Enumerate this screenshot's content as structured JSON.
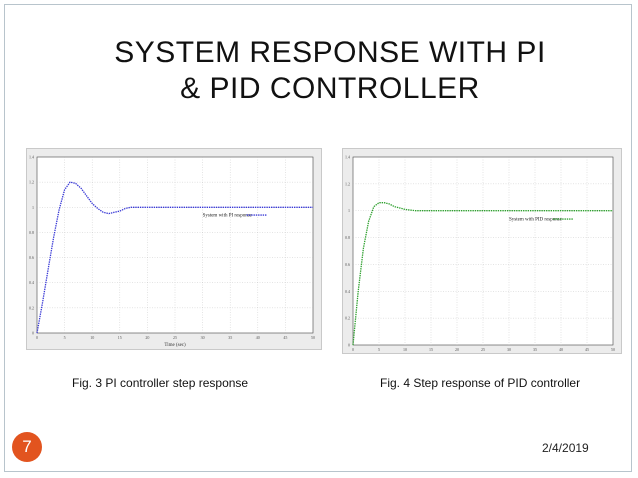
{
  "slide": {
    "title_line1": "SYSTEM RESPONSE WITH PI",
    "title_line2": "& PID CONTROLLER",
    "slide_number": "7",
    "date": "2/4/2019",
    "accent_color": "#e2541f"
  },
  "chart_data": [
    {
      "type": "line",
      "caption": "Fig. 3 PI controller step response",
      "xlabel": "Time (sec)",
      "ylabel": "Amplitude",
      "xlim": [
        0,
        50
      ],
      "ylim": [
        0,
        1.4
      ],
      "xticks": [
        "0",
        "5",
        "10",
        "15",
        "20",
        "25",
        "30",
        "35",
        "40",
        "45",
        "50"
      ],
      "yticks": [
        "0",
        "0.2",
        "0.4",
        "0.6",
        "0.8",
        "1",
        "1.2",
        "1.4"
      ],
      "grid": true,
      "legend_position": "right",
      "series": [
        {
          "name": "System with PI response",
          "color": "#3a3ad6",
          "x": [
            0,
            1,
            2,
            3,
            4,
            5,
            6,
            7,
            8,
            9,
            10,
            11,
            12,
            13,
            14,
            15,
            16,
            17,
            18,
            19,
            20,
            22,
            24,
            26,
            28,
            30,
            35,
            40,
            45,
            50
          ],
          "y": [
            0,
            0.24,
            0.5,
            0.76,
            0.98,
            1.14,
            1.2,
            1.19,
            1.15,
            1.09,
            1.03,
            0.99,
            0.96,
            0.95,
            0.96,
            0.97,
            0.99,
            1.0,
            1.0,
            1.0,
            1.0,
            1.0,
            1.0,
            1.0,
            1.0,
            1.0,
            1.0,
            1.0,
            1.0,
            1.0
          ]
        }
      ]
    },
    {
      "type": "line",
      "caption": "Fig. 4 Step response of PID controller",
      "xlabel": "Time (sec)",
      "ylabel": "Amplitude",
      "xlim": [
        0,
        50
      ],
      "ylim": [
        0,
        1.4
      ],
      "xticks": [
        "0",
        "5",
        "10",
        "15",
        "20",
        "25",
        "30",
        "35",
        "40",
        "45",
        "50"
      ],
      "yticks": [
        "0",
        "0.2",
        "0.4",
        "0.6",
        "0.8",
        "1",
        "1.2",
        "1.4"
      ],
      "grid": true,
      "legend_position": "right",
      "series": [
        {
          "name": "System with PID response",
          "color": "#2ea02e",
          "x": [
            0,
            1,
            2,
            3,
            4,
            5,
            6,
            7,
            8,
            9,
            10,
            12,
            14,
            16,
            18,
            20,
            25,
            30,
            35,
            40,
            45,
            50
          ],
          "y": [
            0,
            0.4,
            0.72,
            0.92,
            1.03,
            1.06,
            1.06,
            1.05,
            1.03,
            1.02,
            1.01,
            1.0,
            1.0,
            1.0,
            1.0,
            1.0,
            1.0,
            1.0,
            1.0,
            1.0,
            1.0,
            1.0
          ]
        }
      ]
    }
  ]
}
